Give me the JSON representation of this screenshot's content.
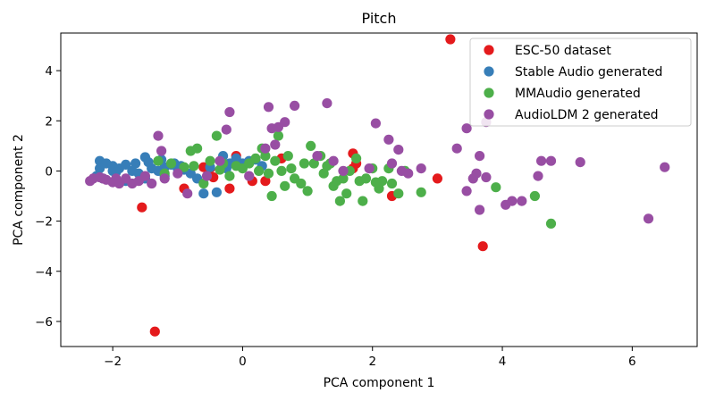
{
  "chart_data": {
    "type": "scatter",
    "title": "Pitch",
    "xlabel": "PCA component 1",
    "ylabel": "PCA component 2",
    "xlim": [
      -2.8,
      7.0
    ],
    "ylim": [
      -7.0,
      5.5
    ],
    "xticks": [
      -2,
      0,
      2,
      4,
      6
    ],
    "yticks": [
      -6,
      -4,
      -2,
      0,
      2,
      4
    ],
    "xtick_labels": [
      "−2",
      "0",
      "2",
      "4",
      "6"
    ],
    "ytick_labels": [
      "−6",
      "−4",
      "−2",
      "0",
      "2",
      "4"
    ],
    "grid": false,
    "legend_position": "top-right",
    "series": [
      {
        "name": "ESC-50 dataset",
        "color": "#e41a1c",
        "points": [
          [
            3.2,
            5.25
          ],
          [
            1.7,
            0.7
          ],
          [
            1.75,
            0.3
          ],
          [
            3.7,
            -3.0
          ],
          [
            3.0,
            -0.3
          ],
          [
            2.3,
            -1.0
          ],
          [
            -1.55,
            -1.45
          ],
          [
            -1.35,
            -6.4
          ],
          [
            -0.9,
            -0.7
          ],
          [
            -0.5,
            0.1
          ],
          [
            -0.2,
            -0.7
          ],
          [
            -0.6,
            0.15
          ],
          [
            0.15,
            -0.4
          ],
          [
            0.35,
            -0.4
          ],
          [
            0.6,
            0.5
          ],
          [
            1.7,
            0.1
          ],
          [
            -0.1,
            0.6
          ],
          [
            -0.45,
            -0.25
          ]
        ]
      },
      {
        "name": "Stable Audio generated",
        "color": "#377eb8",
        "points": [
          [
            -2.2,
            0.4
          ],
          [
            -2.1,
            0.3
          ],
          [
            -2.0,
            0.2
          ],
          [
            -1.9,
            0.1
          ],
          [
            -1.8,
            0.25
          ],
          [
            -1.7,
            0.0
          ],
          [
            -1.6,
            -0.1
          ],
          [
            -1.5,
            0.55
          ],
          [
            -1.4,
            0.1
          ],
          [
            -1.3,
            0.0
          ],
          [
            -1.2,
            0.15
          ],
          [
            -1.1,
            0.25
          ],
          [
            -1.0,
            0.1
          ],
          [
            -0.9,
            0.05
          ],
          [
            -0.8,
            -0.1
          ],
          [
            -0.7,
            -0.3
          ],
          [
            -0.6,
            -0.9
          ],
          [
            -0.4,
            -0.85
          ],
          [
            -0.3,
            0.6
          ],
          [
            -0.2,
            0.3
          ],
          [
            -0.1,
            0.5
          ],
          [
            0.0,
            0.3
          ],
          [
            0.1,
            0.4
          ],
          [
            0.2,
            0.45
          ],
          [
            0.3,
            0.2
          ],
          [
            -1.2,
            -0.2
          ],
          [
            -1.5,
            -0.3
          ],
          [
            -1.8,
            -0.4
          ],
          [
            -2.0,
            0.0
          ],
          [
            -2.2,
            0.1
          ],
          [
            -2.25,
            -0.2
          ],
          [
            -2.15,
            -0.3
          ],
          [
            -1.95,
            -0.05
          ],
          [
            -1.65,
            0.3
          ],
          [
            -1.45,
            0.35
          ],
          [
            -1.25,
            0.45
          ],
          [
            -1.05,
            0.3
          ],
          [
            -0.95,
            0.2
          ],
          [
            -0.5,
            0.15
          ],
          [
            -0.25,
            0.1
          ]
        ]
      },
      {
        "name": "MMAudio generated",
        "color": "#4daf4a",
        "points": [
          [
            -1.3,
            0.4
          ],
          [
            -1.2,
            -0.1
          ],
          [
            -1.1,
            0.3
          ],
          [
            -0.9,
            0.15
          ],
          [
            -0.8,
            0.8
          ],
          [
            -0.7,
            0.9
          ],
          [
            -0.6,
            -0.5
          ],
          [
            -0.5,
            0.4
          ],
          [
            -0.4,
            1.4
          ],
          [
            -0.3,
            0.3
          ],
          [
            -0.2,
            -0.2
          ],
          [
            -0.1,
            0.2
          ],
          [
            0.0,
            0.1
          ],
          [
            0.1,
            0.3
          ],
          [
            0.2,
            0.5
          ],
          [
            0.3,
            0.9
          ],
          [
            0.4,
            -0.1
          ],
          [
            0.45,
            -1.0
          ],
          [
            0.5,
            0.4
          ],
          [
            0.55,
            1.4
          ],
          [
            0.6,
            0.0
          ],
          [
            0.7,
            0.6
          ],
          [
            0.8,
            -0.3
          ],
          [
            0.9,
            -0.5
          ],
          [
            1.0,
            -0.8
          ],
          [
            1.05,
            1.0
          ],
          [
            1.1,
            0.3
          ],
          [
            1.2,
            0.6
          ],
          [
            1.3,
            0.2
          ],
          [
            1.35,
            0.3
          ],
          [
            1.4,
            -0.6
          ],
          [
            1.45,
            -0.4
          ],
          [
            1.5,
            -1.2
          ],
          [
            1.55,
            -0.3
          ],
          [
            1.6,
            -0.9
          ],
          [
            1.75,
            0.5
          ],
          [
            1.8,
            -0.4
          ],
          [
            1.85,
            -1.2
          ],
          [
            1.9,
            -0.3
          ],
          [
            2.0,
            0.1
          ],
          [
            2.1,
            -0.7
          ],
          [
            2.15,
            -0.4
          ],
          [
            2.25,
            0.1
          ],
          [
            2.3,
            -0.5
          ],
          [
            2.4,
            -0.9
          ],
          [
            2.5,
            0.0
          ],
          [
            2.75,
            -0.85
          ],
          [
            3.9,
            -0.65
          ],
          [
            4.5,
            -1.0
          ],
          [
            4.75,
            -2.1
          ],
          [
            0.95,
            0.3
          ],
          [
            0.65,
            -0.6
          ],
          [
            1.25,
            -0.1
          ],
          [
            -0.75,
            0.2
          ],
          [
            -0.35,
            0.05
          ],
          [
            0.25,
            0.0
          ],
          [
            0.35,
            0.6
          ],
          [
            1.65,
            0.0
          ],
          [
            2.05,
            -0.45
          ],
          [
            0.75,
            0.1
          ]
        ]
      },
      {
        "name": "AudioLDM 2 generated",
        "color": "#984ea3",
        "points": [
          [
            -2.35,
            -0.4
          ],
          [
            -2.3,
            -0.3
          ],
          [
            -2.2,
            -0.25
          ],
          [
            -2.1,
            -0.35
          ],
          [
            -2.0,
            -0.45
          ],
          [
            -1.9,
            -0.5
          ],
          [
            -1.8,
            -0.3
          ],
          [
            -1.7,
            -0.5
          ],
          [
            -1.6,
            -0.4
          ],
          [
            -1.5,
            -0.2
          ],
          [
            -1.4,
            -0.5
          ],
          [
            -1.3,
            1.4
          ],
          [
            -1.25,
            0.8
          ],
          [
            -1.2,
            -0.3
          ],
          [
            -1.0,
            -0.1
          ],
          [
            -0.85,
            -0.9
          ],
          [
            -0.2,
            2.35
          ],
          [
            -0.25,
            1.65
          ],
          [
            0.4,
            2.55
          ],
          [
            0.45,
            1.7
          ],
          [
            0.5,
            1.05
          ],
          [
            0.55,
            1.75
          ],
          [
            0.65,
            1.95
          ],
          [
            0.8,
            2.6
          ],
          [
            1.3,
            2.7
          ],
          [
            1.15,
            0.6
          ],
          [
            1.4,
            0.4
          ],
          [
            1.55,
            0.0
          ],
          [
            2.05,
            1.9
          ],
          [
            2.25,
            1.25
          ],
          [
            2.4,
            0.85
          ],
          [
            2.3,
            0.3
          ],
          [
            2.45,
            0.0
          ],
          [
            2.55,
            -0.1
          ],
          [
            2.75,
            0.1
          ],
          [
            3.3,
            0.9
          ],
          [
            3.45,
            1.7
          ],
          [
            3.45,
            -0.8
          ],
          [
            3.6,
            -0.1
          ],
          [
            3.65,
            -1.55
          ],
          [
            3.65,
            0.6
          ],
          [
            3.75,
            1.95
          ],
          [
            4.05,
            -1.35
          ],
          [
            4.15,
            -1.2
          ],
          [
            4.3,
            -1.2
          ],
          [
            4.55,
            -0.2
          ],
          [
            4.6,
            0.4
          ],
          [
            4.75,
            0.4
          ],
          [
            5.2,
            0.35
          ],
          [
            6.25,
            -1.9
          ],
          [
            6.5,
            0.15
          ],
          [
            3.75,
            -0.25
          ],
          [
            0.35,
            0.9
          ],
          [
            -0.55,
            -0.2
          ],
          [
            -0.35,
            0.4
          ],
          [
            0.1,
            -0.2
          ],
          [
            -1.95,
            -0.3
          ],
          [
            -2.15,
            -0.3
          ],
          [
            1.95,
            0.1
          ],
          [
            3.55,
            -0.3
          ]
        ]
      }
    ]
  }
}
